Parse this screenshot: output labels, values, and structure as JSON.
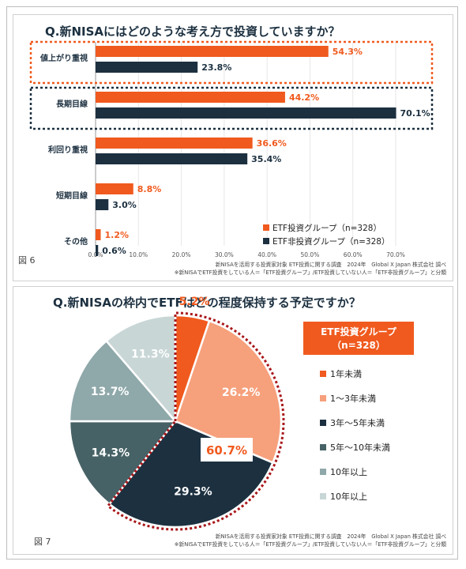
{
  "chart_data": [
    {
      "type": "bar",
      "title": "Q.新NISAにはどのような考え方で投資していますか？",
      "categories": [
        "値上がり重視",
        "長期目線",
        "利回り重視",
        "短期目線",
        "その他"
      ],
      "series": [
        {
          "name": "ETF投資グループ（n=328）",
          "values": [
            54.3,
            44.2,
            36.6,
            8.8,
            1.2
          ],
          "labels": [
            "54.3%",
            "44.2%",
            "36.6%",
            "8.8%",
            "1.2%"
          ],
          "color": "#f05a1e"
        },
        {
          "name": "ETF非投資グループ（n=328）",
          "values": [
            23.8,
            70.1,
            35.4,
            3.0,
            0.6
          ],
          "labels": [
            "23.8%",
            "70.1%",
            "35.4%",
            "3.0%",
            "0.6%"
          ],
          "color": "#1c3040"
        }
      ],
      "xlim": [
        0,
        70
      ],
      "ticks": [
        "0.0%",
        "10.0%",
        "20.0%",
        "30.0%",
        "40.0%",
        "50.0%",
        "60.0%",
        "70.0%"
      ],
      "figure_label": "図 6",
      "source_line1": "新NISAを活用する投資家対象 ETF投資に関する調査　2024年　Global X Japan 株式会社 調べ",
      "source_line2": "※新NISAでETF投資をしている人＝「ETF投資グループ」/ETF投資していない人＝「ETF非投資グループ」と分類"
    },
    {
      "type": "pie",
      "title": "Q.新NISAの枠内でETFはどの程度保持する予定ですか？",
      "group_label_line1": "ETF投資グループ",
      "group_label_line2": "（n=328）",
      "highlight_label": "60.7%",
      "slices": [
        {
          "label": "1年未満",
          "value": 5.2,
          "text": "5.2%",
          "color": "#f05a1e"
        },
        {
          "label": "1～3年未満",
          "value": 26.2,
          "text": "26.2%",
          "color": "#f6a07c"
        },
        {
          "label": "3年～5年未満",
          "value": 29.3,
          "text": "29.3%",
          "color": "#1c3040"
        },
        {
          "label": "5年～10年未満",
          "value": 14.3,
          "text": "14.3%",
          "color": "#476266"
        },
        {
          "label": "10年以上",
          "value": 13.7,
          "text": "13.7%",
          "color": "#8fa8aa"
        },
        {
          "label": "10年以上",
          "value": 11.3,
          "text": "11.3%",
          "color": "#c8d6d6"
        }
      ],
      "figure_label": "図 7",
      "source_line1": "新NISAを活用する投資家対象 ETF投資に関する調査　2024年　Global X Japan 株式会社 調べ",
      "source_line2": "※新NISAでETF投資をしている人＝「ETF投資グループ」/ETF投資していない人＝「ETF非投資グループ」と分類"
    }
  ]
}
